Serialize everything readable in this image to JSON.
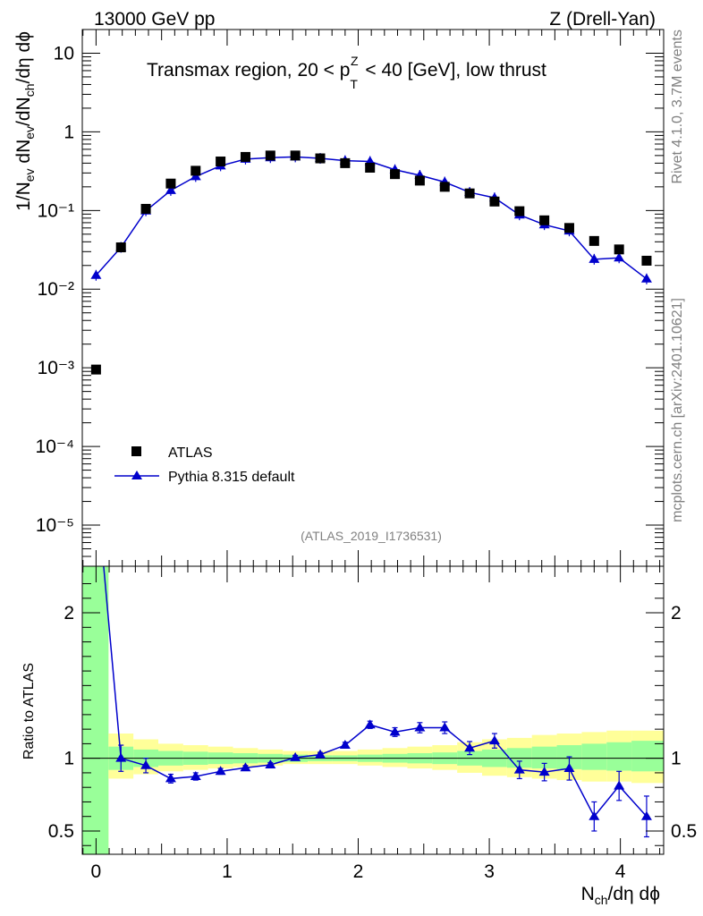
{
  "header": {
    "left": "13000 GeV pp",
    "right": "Z (Drell-Yan)",
    "side_top": "Rivet 4.1.0,  3.7M events",
    "side_bottom": "mcplots.cern.ch [arXiv:2401.10621]",
    "analysis_id": "(ATLAS_2019_I1736531)"
  },
  "chart_data": [
    {
      "panel": "main",
      "type": "scatter",
      "title": "Transmax region, 20 < p_T^Z < 40 [GeV], low thrust",
      "ylabel": "1/N_ev dN_ev/dN_ch/dη dϕ",
      "yscale": "log",
      "ylim": [
        3e-06,
        20
      ],
      "xlim": [
        -0.105,
        4.33
      ],
      "ytick_labels": [
        "10",
        "1",
        "10⁻¹",
        "10⁻²",
        "10⁻³",
        "10⁻⁴",
        "10⁻⁵"
      ],
      "legend": [
        "ATLAS",
        "Pythia 8.315 default"
      ],
      "series": [
        {
          "name": "ATLAS",
          "marker": "square",
          "color": "#000000",
          "x": [
            0.0,
            0.19,
            0.38,
            0.57,
            0.76,
            0.95,
            1.14,
            1.33,
            1.52,
            1.71,
            1.9,
            2.09,
            2.28,
            2.47,
            2.66,
            2.85,
            3.04,
            3.23,
            3.42,
            3.61,
            3.8,
            3.99,
            4.2
          ],
          "y": [
            0.00095,
            0.034,
            0.105,
            0.22,
            0.32,
            0.42,
            0.48,
            0.5,
            0.5,
            0.46,
            0.4,
            0.35,
            0.29,
            0.24,
            0.2,
            0.165,
            0.13,
            0.098,
            0.075,
            0.06,
            0.041,
            0.032,
            0.023
          ]
        },
        {
          "name": "Pythia 8.315 default",
          "marker": "triangle",
          "color": "#0000cc",
          "x": [
            0.0,
            0.19,
            0.38,
            0.57,
            0.76,
            0.95,
            1.14,
            1.33,
            1.52,
            1.71,
            1.9,
            2.09,
            2.28,
            2.47,
            2.66,
            2.85,
            3.04,
            3.23,
            3.42,
            3.61,
            3.8,
            3.99,
            4.2
          ],
          "y": [
            0.015,
            0.034,
            0.099,
            0.18,
            0.27,
            0.37,
            0.45,
            0.47,
            0.48,
            0.46,
            0.43,
            0.42,
            0.33,
            0.28,
            0.23,
            0.17,
            0.145,
            0.088,
            0.066,
            0.055,
            0.024,
            0.025,
            0.0135
          ]
        }
      ]
    },
    {
      "panel": "ratio",
      "type": "scatter",
      "ylabel": "Ratio to ATLAS",
      "xlabel": "N_ch/dη dϕ",
      "ylim": [
        0.34,
        2.32
      ],
      "xlim": [
        -0.105,
        4.33
      ],
      "ytick_labels": [
        "0.5",
        "1",
        "2"
      ],
      "xtick_labels": [
        "0",
        "1",
        "2",
        "3",
        "4"
      ],
      "band_edges": [
        -0.105,
        0.095,
        0.285,
        0.475,
        0.665,
        0.855,
        1.045,
        1.235,
        1.425,
        1.615,
        1.805,
        1.995,
        2.185,
        2.375,
        2.565,
        2.755,
        2.945,
        3.135,
        3.325,
        3.515,
        3.705,
        3.895,
        4.085,
        4.33
      ],
      "band_yellow": [
        [
          0.34,
          2.32
        ],
        [
          0.86,
          1.17
        ],
        [
          0.89,
          1.13
        ],
        [
          0.91,
          1.1
        ],
        [
          0.92,
          1.09
        ],
        [
          0.93,
          1.08
        ],
        [
          0.94,
          1.07
        ],
        [
          0.95,
          1.06
        ],
        [
          0.96,
          1.05
        ],
        [
          0.96,
          1.05
        ],
        [
          0.96,
          1.05
        ],
        [
          0.95,
          1.06
        ],
        [
          0.94,
          1.07
        ],
        [
          0.93,
          1.08
        ],
        [
          0.92,
          1.09
        ],
        [
          0.9,
          1.11
        ],
        [
          0.88,
          1.13
        ],
        [
          0.87,
          1.14
        ],
        [
          0.86,
          1.16
        ],
        [
          0.85,
          1.17
        ],
        [
          0.84,
          1.18
        ],
        [
          0.84,
          1.19
        ],
        [
          0.83,
          1.19
        ]
      ],
      "band_green": [
        [
          0.34,
          2.32
        ],
        [
          0.92,
          1.08
        ],
        [
          0.94,
          1.06
        ],
        [
          0.95,
          1.05
        ],
        [
          0.955,
          1.045
        ],
        [
          0.96,
          1.04
        ],
        [
          0.965,
          1.035
        ],
        [
          0.97,
          1.03
        ],
        [
          0.975,
          1.025
        ],
        [
          0.98,
          1.02
        ],
        [
          0.98,
          1.02
        ],
        [
          0.975,
          1.025
        ],
        [
          0.97,
          1.03
        ],
        [
          0.965,
          1.035
        ],
        [
          0.96,
          1.04
        ],
        [
          0.95,
          1.05
        ],
        [
          0.94,
          1.06
        ],
        [
          0.935,
          1.07
        ],
        [
          0.93,
          1.08
        ],
        [
          0.925,
          1.09
        ],
        [
          0.92,
          1.1
        ],
        [
          0.915,
          1.11
        ],
        [
          0.91,
          1.12
        ]
      ],
      "series": [
        {
          "name": "Pythia 8.315 default / ATLAS",
          "color": "#0000cc",
          "x": [
            0.19,
            0.38,
            0.57,
            0.76,
            0.95,
            1.14,
            1.33,
            1.52,
            1.71,
            1.9,
            2.09,
            2.28,
            2.47,
            2.66,
            2.85,
            3.04,
            3.23,
            3.42,
            3.61,
            3.8,
            3.99,
            4.2
          ],
          "y": [
            1.0,
            0.95,
            0.86,
            0.875,
            0.91,
            0.935,
            0.955,
            1.005,
            1.025,
            1.09,
            1.23,
            1.18,
            1.21,
            1.21,
            1.07,
            1.12,
            0.92,
            0.905,
            0.93,
            0.6,
            0.81,
            0.6
          ],
          "yerr_low": [
            0.09,
            0.05,
            0.03,
            0.025,
            0.02,
            0.015,
            0.015,
            0.015,
            0.015,
            0.02,
            0.025,
            0.03,
            0.035,
            0.04,
            0.045,
            0.05,
            0.06,
            0.06,
            0.08,
            0.1,
            0.1,
            0.14
          ],
          "yerr_high": [
            0.09,
            0.05,
            0.03,
            0.025,
            0.02,
            0.015,
            0.015,
            0.015,
            0.015,
            0.02,
            0.025,
            0.03,
            0.035,
            0.04,
            0.045,
            0.05,
            0.06,
            0.06,
            0.08,
            0.1,
            0.1,
            0.14
          ],
          "extra_line_from": {
            "x": 0.0,
            "y": 2.9
          }
        }
      ]
    }
  ]
}
